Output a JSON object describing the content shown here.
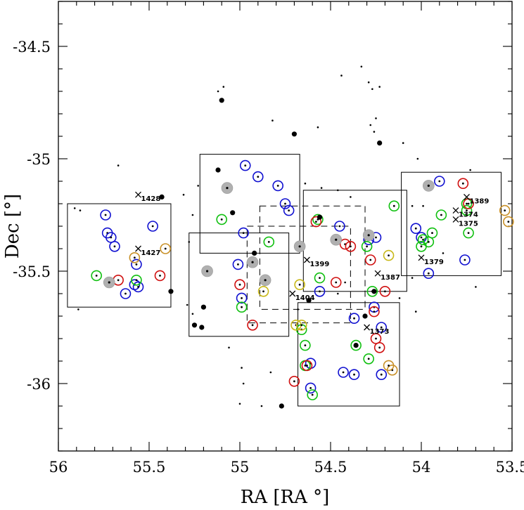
{
  "chart_data": {
    "type": "scatter",
    "xlabel": "RA [RA °]",
    "ylabel": "Dec [°]",
    "xlim": [
      56,
      53.5
    ],
    "ylim": [
      -36.3,
      -34.3
    ],
    "x_inverted": true,
    "xticks": [
      56,
      55.5,
      55,
      54.5,
      54,
      53.5
    ],
    "xtick_labels": [
      "56",
      "55.5",
      "55",
      "54.5",
      "54",
      "53.5"
    ],
    "yticks": [
      -34.5,
      -35,
      -35.5,
      -36
    ],
    "ytick_labels": [
      "-34.5",
      "-35",
      "-35.5",
      "-36"
    ],
    "colors": {
      "blue": "#1010d0",
      "green": "#10c010",
      "red": "#d01010",
      "yellow": "#c8b818",
      "orange": "#c89028",
      "gray": "#b0b0b0",
      "black": "#000000"
    },
    "fields": [
      {
        "ra": [
          55.95,
          55.38
        ],
        "dec": [
          -35.66,
          -35.2
        ],
        "style": "solid"
      },
      {
        "ra": [
          55.28,
          54.73
        ],
        "dec": [
          -35.79,
          -35.33
        ],
        "style": "solid"
      },
      {
        "ra": [
          55.22,
          54.67
        ],
        "dec": [
          -35.42,
          -34.98
        ],
        "style": "solid"
      },
      {
        "ra": [
          54.96,
          54.39
        ],
        "dec": [
          -35.73,
          -35.3
        ],
        "style": "dashed"
      },
      {
        "ra": [
          54.89,
          54.31
        ],
        "dec": [
          -35.67,
          -35.21
        ],
        "style": "dashed"
      },
      {
        "ra": [
          54.65,
          54.08
        ],
        "dec": [
          -35.59,
          -35.14
        ],
        "style": "solid"
      },
      {
        "ra": [
          54.68,
          54.12
        ],
        "dec": [
          -36.1,
          -35.64
        ],
        "style": "solid"
      },
      {
        "ra": [
          54.11,
          53.56
        ],
        "dec": [
          -35.52,
          -35.06
        ],
        "style": "solid"
      }
    ],
    "labeled_galaxies": [
      {
        "label": "1428",
        "ra": 55.56,
        "dec": -35.16
      },
      {
        "label": "1427",
        "ra": 55.56,
        "dec": -35.4
      },
      {
        "label": "1404",
        "ra": 54.71,
        "dec": -35.6
      },
      {
        "label": "1399",
        "ra": 54.63,
        "dec": -35.45
      },
      {
        "label": "1387",
        "ra": 54.24,
        "dec": -35.51
      },
      {
        "label": "1379",
        "ra": 54.0,
        "dec": -35.44
      },
      {
        "label": "1389",
        "ra": 53.75,
        "dec": -35.17
      },
      {
        "label": "1374",
        "ra": 53.81,
        "dec": -35.23
      },
      {
        "label": "1375",
        "ra": 53.81,
        "dec": -35.27
      },
      {
        "label": "1373",
        "ra": 54.3,
        "dec": -35.75
      }
    ],
    "series": [
      {
        "marker": "open circle",
        "color": "blue",
        "points": [
          [
            55.74,
            -35.25
          ],
          [
            55.73,
            -35.33
          ],
          [
            55.69,
            -35.39
          ],
          [
            55.71,
            -35.35
          ],
          [
            55.48,
            -35.3
          ],
          [
            55.57,
            -35.47
          ],
          [
            55.58,
            -35.56
          ],
          [
            55.63,
            -35.6
          ],
          [
            55.56,
            -35.57
          ],
          [
            54.97,
            -35.03
          ],
          [
            54.9,
            -35.08
          ],
          [
            54.79,
            -35.12
          ],
          [
            54.75,
            -35.2
          ],
          [
            54.73,
            -35.23
          ],
          [
            54.98,
            -35.33
          ],
          [
            55.01,
            -35.47
          ],
          [
            54.99,
            -35.62
          ],
          [
            54.56,
            -35.59
          ],
          [
            54.45,
            -35.3
          ],
          [
            54.29,
            -35.36
          ],
          [
            54.25,
            -35.35
          ],
          [
            54.22,
            -35.75
          ],
          [
            54.26,
            -35.66
          ],
          [
            54.37,
            -35.71
          ],
          [
            54.43,
            -35.95
          ],
          [
            54.37,
            -35.96
          ],
          [
            54.61,
            -35.91
          ],
          [
            54.61,
            -36.02
          ],
          [
            54.22,
            -35.96
          ],
          [
            53.9,
            -35.1
          ],
          [
            54.03,
            -35.31
          ],
          [
            54.0,
            -35.35
          ],
          [
            53.96,
            -35.51
          ],
          [
            53.76,
            -35.45
          ]
        ]
      },
      {
        "marker": "open circle",
        "color": "green",
        "points": [
          [
            55.79,
            -35.52
          ],
          [
            55.57,
            -35.54
          ],
          [
            55.1,
            -35.27
          ],
          [
            54.99,
            -35.66
          ],
          [
            54.84,
            -35.37
          ],
          [
            54.56,
            -35.53
          ],
          [
            54.57,
            -35.27
          ],
          [
            54.3,
            -35.39
          ],
          [
            54.27,
            -35.59
          ],
          [
            54.66,
            -35.76
          ],
          [
            54.64,
            -35.83
          ],
          [
            54.36,
            -35.83
          ],
          [
            54.29,
            -35.89
          ],
          [
            54.64,
            -35.92
          ],
          [
            54.6,
            -36.05
          ],
          [
            54.15,
            -35.21
          ],
          [
            53.99,
            -35.36
          ],
          [
            54.0,
            -35.39
          ],
          [
            53.96,
            -35.37
          ],
          [
            53.94,
            -35.33
          ],
          [
            53.89,
            -35.25
          ],
          [
            53.75,
            -35.2
          ],
          [
            53.75,
            -35.23
          ],
          [
            53.74,
            -35.33
          ]
        ]
      },
      {
        "marker": "open circle",
        "color": "red",
        "points": [
          [
            55.67,
            -35.54
          ],
          [
            55.44,
            -35.52
          ],
          [
            55.0,
            -35.56
          ],
          [
            54.93,
            -35.74
          ],
          [
            54.58,
            -35.28
          ],
          [
            54.47,
            -35.55
          ],
          [
            54.42,
            -35.38
          ],
          [
            54.39,
            -35.39
          ],
          [
            54.28,
            -35.45
          ],
          [
            54.2,
            -35.59
          ],
          [
            54.26,
            -35.68
          ],
          [
            54.25,
            -35.8
          ],
          [
            54.23,
            -35.84
          ],
          [
            54.7,
            -35.99
          ],
          [
            54.63,
            -35.92
          ],
          [
            53.77,
            -35.11
          ],
          [
            53.74,
            -35.2
          ]
        ]
      },
      {
        "marker": "open circle",
        "color": "yellow",
        "points": [
          [
            54.87,
            -35.59
          ],
          [
            54.69,
            -35.74
          ],
          [
            54.66,
            -35.74
          ],
          [
            54.67,
            -35.56
          ],
          [
            54.18,
            -35.43
          ]
        ]
      },
      {
        "marker": "open circle",
        "color": "orange",
        "points": [
          [
            55.41,
            -35.4
          ],
          [
            55.58,
            -35.44
          ],
          [
            54.16,
            -35.94
          ],
          [
            54.18,
            -35.92
          ],
          [
            53.54,
            -35.23
          ],
          [
            53.52,
            -35.28
          ]
        ]
      },
      {
        "marker": "gray filled circle",
        "color": "gray",
        "points": [
          [
            55.72,
            -35.55
          ],
          [
            55.18,
            -35.5
          ],
          [
            55.07,
            -35.13
          ],
          [
            54.93,
            -35.46
          ],
          [
            54.86,
            -35.54
          ],
          [
            54.67,
            -35.39
          ],
          [
            54.47,
            -35.36
          ],
          [
            54.29,
            -35.34
          ],
          [
            53.96,
            -35.12
          ]
        ]
      },
      {
        "marker": "filled dot",
        "color": "black",
        "points": [
          [
            55.1,
            -34.74
          ],
          [
            54.7,
            -34.89
          ],
          [
            54.56,
            -35.26
          ],
          [
            54.26,
            -35.59
          ],
          [
            54.31,
            -35.7
          ],
          [
            54.36,
            -35.83
          ],
          [
            54.23,
            -34.93
          ],
          [
            54.77,
            -36.1
          ],
          [
            55.2,
            -35.66
          ],
          [
            55.25,
            -35.74
          ],
          [
            55.21,
            -35.75
          ],
          [
            55.43,
            -35.17
          ],
          [
            55.38,
            -35.59
          ],
          [
            54.92,
            -35.42
          ],
          [
            55.12,
            -35.05
          ],
          [
            54.62,
            -35.63
          ],
          [
            55.04,
            -35.24
          ]
        ]
      },
      {
        "marker": "small dot",
        "color": "black",
        "points": [
          [
            55.88,
            -35.23
          ],
          [
            55.91,
            -35.22
          ],
          [
            55.89,
            -35.67
          ],
          [
            55.67,
            -35.03
          ],
          [
            55.31,
            -35.16
          ],
          [
            55.23,
            -35.12
          ],
          [
            55.26,
            -35.25
          ],
          [
            55.28,
            -35.37
          ],
          [
            55.29,
            -35.65
          ],
          [
            55.26,
            -35.69
          ],
          [
            55.06,
            -35.84
          ],
          [
            54.99,
            -35.93
          ],
          [
            54.98,
            -36.0
          ],
          [
            55.0,
            -36.09
          ],
          [
            54.88,
            -36.1
          ],
          [
            54.83,
            -35.95
          ],
          [
            55.12,
            -34.7
          ],
          [
            55.09,
            -34.68
          ],
          [
            54.82,
            -34.83
          ],
          [
            54.57,
            -34.86
          ],
          [
            54.44,
            -34.63
          ],
          [
            54.33,
            -34.59
          ],
          [
            54.29,
            -34.66
          ],
          [
            54.27,
            -34.69
          ],
          [
            54.23,
            -34.68
          ],
          [
            54.25,
            -34.82
          ],
          [
            54.28,
            -34.85
          ],
          [
            54.26,
            -34.88
          ],
          [
            54.1,
            -34.93
          ],
          [
            54.02,
            -35.0
          ],
          [
            54.64,
            -35.11
          ],
          [
            54.55,
            -35.13
          ],
          [
            54.46,
            -35.14
          ],
          [
            54.39,
            -35.17
          ],
          [
            54.05,
            -35.21
          ],
          [
            53.99,
            -35.21
          ],
          [
            53.88,
            -35.42
          ],
          [
            54.05,
            -35.53
          ],
          [
            53.73,
            -35.05
          ],
          [
            53.7,
            -35.57
          ],
          [
            54.12,
            -35.62
          ],
          [
            54.03,
            -35.68
          ],
          [
            54.42,
            -35.55
          ],
          [
            54.46,
            -35.6
          ],
          [
            54.68,
            -35.67
          ]
        ]
      }
    ]
  }
}
